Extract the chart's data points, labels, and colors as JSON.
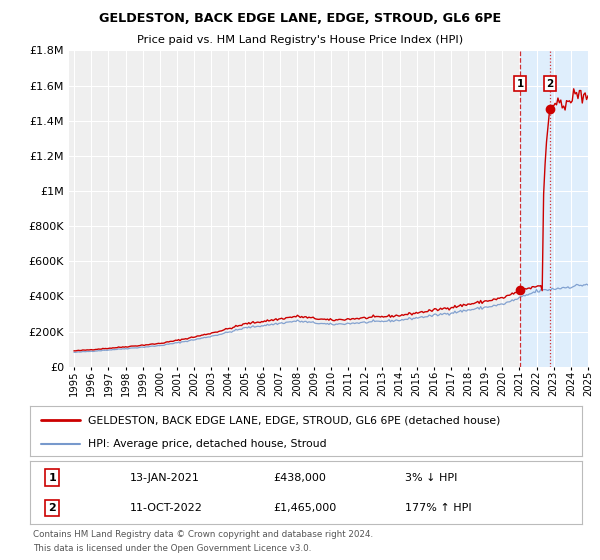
{
  "title": "GELDESTON, BACK EDGE LANE, EDGE, STROUD, GL6 6PE",
  "subtitle": "Price paid vs. HM Land Registry's House Price Index (HPI)",
  "legend_line1": "GELDESTON, BACK EDGE LANE, EDGE, STROUD, GL6 6PE (detached house)",
  "legend_line2": "HPI: Average price, detached house, Stroud",
  "marker1_date": "13-JAN-2021",
  "marker1_price": "£438,000",
  "marker1_hpi": "3% ↓ HPI",
  "marker2_date": "11-OCT-2022",
  "marker2_price": "£1,465,000",
  "marker2_hpi": "177% ↑ HPI",
  "footer_line1": "Contains HM Land Registry data © Crown copyright and database right 2024.",
  "footer_line2": "This data is licensed under the Open Government Licence v3.0.",
  "year_start": 1995,
  "year_end": 2025,
  "ylim_max": 1800000,
  "marker1_year": 2021.04,
  "marker2_year": 2022.78,
  "marker1_value": 438000,
  "marker2_value": 1465000,
  "bg_color": "#ffffff",
  "plot_bg_color": "#efefef",
  "grid_color": "#ffffff",
  "hpi_line_color": "#7799cc",
  "price_line_color": "#cc0000",
  "shade_color": "#ddeeff",
  "vline1_color": "#cc0000",
  "vline2_color": "#cc0000",
  "title_fontsize": 9.5,
  "subtitle_fontsize": 8.5
}
